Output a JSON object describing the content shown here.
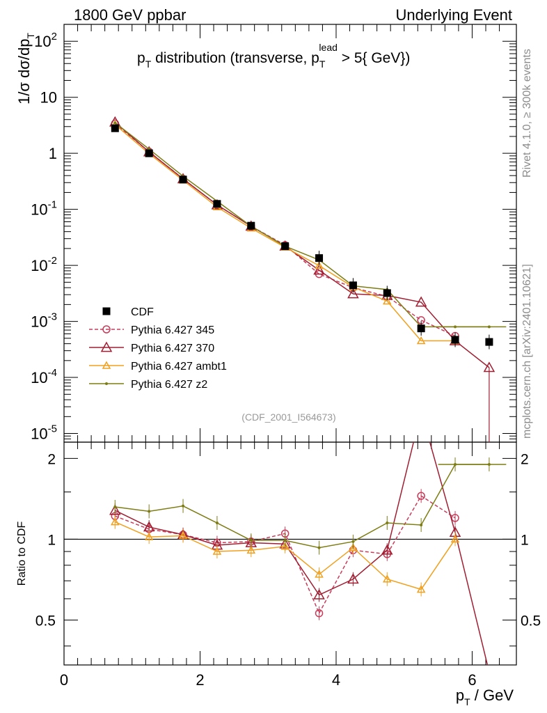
{
  "header": {
    "left": "1800 GeV ppbar",
    "right": "Underlying Event"
  },
  "side_labels": {
    "top": "Rivet 4.1.0, ≥ 300k events",
    "bottom": "mcplots.cern.ch [arXiv:2401.10621]"
  },
  "analysis_id": "(CDF_2001_I564673)",
  "chart_data": {
    "type": "line",
    "title": "p_T distribution (transverse, p_T^lead > 5{ GeV})",
    "xlabel": "p_T / GeV",
    "ylabel": "1/σ  dσ/dp_T",
    "ratio_ylabel": "Ratio to CDF",
    "xlim": [
      0,
      6.65
    ],
    "ylim": [
      7e-06,
      200
    ],
    "ratio_ylim": [
      0.34,
      2.3
    ],
    "x_ticks": [
      "0",
      "2",
      "4",
      "6"
    ],
    "y_ticks": [
      "10^{-5}",
      "10^{-4}",
      "10^{-3}",
      "10^{-2}",
      "10^{-1}",
      "1",
      "10",
      "10^{2}"
    ],
    "ratio_ticks": [
      "0.5",
      "1",
      "2"
    ],
    "x": [
      0.75,
      1.25,
      1.75,
      2.25,
      2.75,
      3.25,
      3.75,
      4.25,
      4.75,
      5.25,
      5.75,
      6.25
    ],
    "series": [
      {
        "name": "CDF",
        "color": "#000000",
        "marker": "square",
        "values": [
          2.8,
          1.0,
          0.34,
          0.125,
          0.051,
          0.022,
          0.0135,
          0.0044,
          0.0032,
          0.00075,
          0.00047,
          0.00043
        ]
      },
      {
        "name": "Pythia 6.427 345",
        "color": "#c83c5a",
        "marker": "circle",
        "dashed": true,
        "values": [
          3.4,
          1.07,
          0.35,
          0.12,
          0.05,
          0.023,
          0.007,
          0.004,
          0.0028,
          0.00105,
          0.00055,
          null
        ],
        "ratio": [
          1.22,
          1.09,
          1.04,
          0.97,
          0.98,
          1.05,
          0.53,
          0.91,
          0.88,
          1.45,
          1.2,
          null
        ]
      },
      {
        "name": "Pythia 6.427 370",
        "color": "#a01e32",
        "marker": "triangle",
        "values": [
          3.6,
          1.06,
          0.35,
          0.12,
          0.05,
          0.022,
          0.0082,
          0.0031,
          0.0029,
          0.0022,
          0.00045,
          0.00015
        ],
        "ratio": [
          1.28,
          1.11,
          1.04,
          0.95,
          0.97,
          0.96,
          0.62,
          0.71,
          0.91,
          3.0,
          1.06,
          0.32
        ]
      },
      {
        "name": "Pythia 6.427 ambt1",
        "color": "#f0a01e",
        "marker": "triangle",
        "values": [
          3.25,
          0.99,
          0.33,
          0.11,
          0.046,
          0.021,
          0.0099,
          0.0041,
          0.0023,
          0.00045,
          0.00045,
          null
        ],
        "ratio": [
          1.16,
          1.02,
          1.03,
          0.9,
          0.91,
          0.94,
          0.74,
          0.93,
          0.71,
          0.65,
          1.0,
          null
        ]
      },
      {
        "name": "Pythia 6.427 z2",
        "color": "#7d7d14",
        "marker": "dot",
        "values": [
          3.5,
          1.19,
          0.39,
          0.14,
          0.05,
          0.022,
          0.0125,
          0.0043,
          0.0037,
          0.0008,
          0.0008,
          0.0008
        ],
        "ratio": [
          1.32,
          1.27,
          1.33,
          1.15,
          0.99,
          0.99,
          0.93,
          0.98,
          1.15,
          1.13,
          1.9,
          1.9
        ]
      }
    ]
  }
}
